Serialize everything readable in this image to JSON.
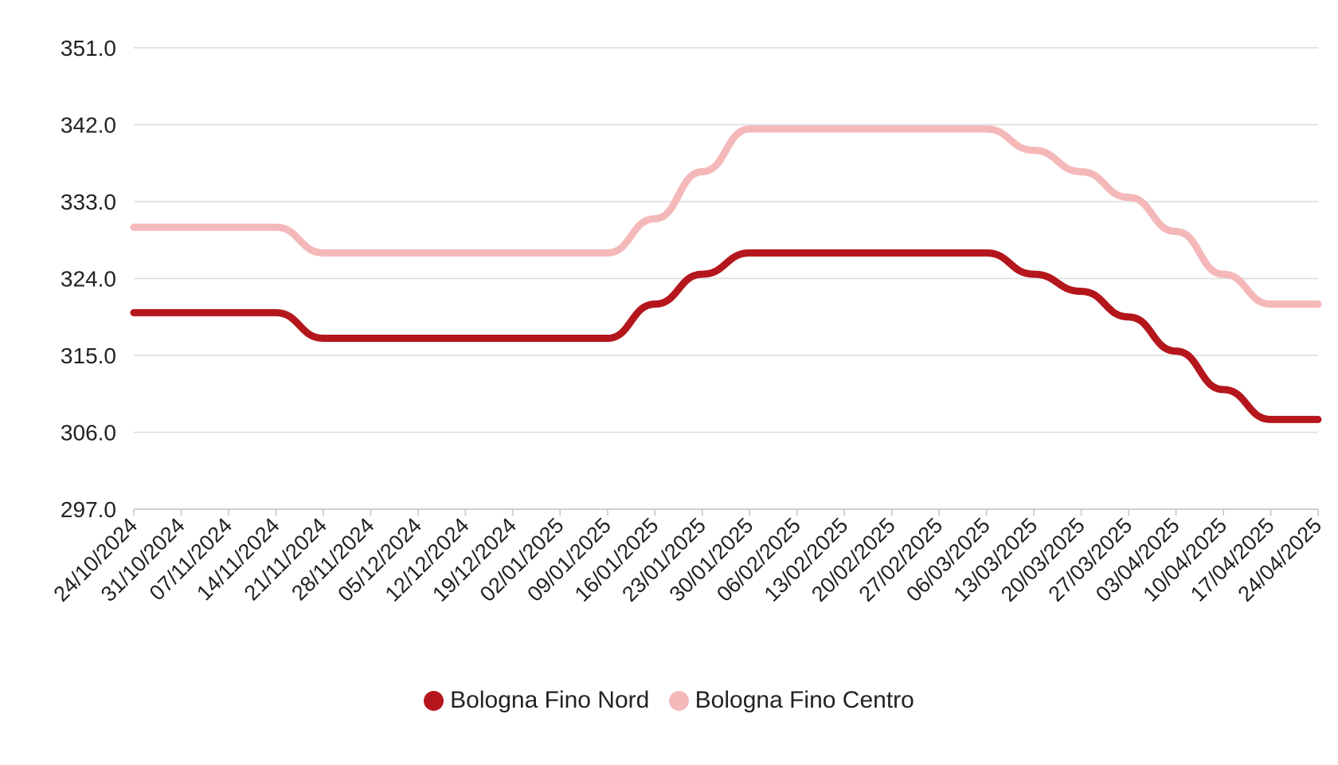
{
  "chart_data": {
    "type": "line",
    "title": "",
    "xlabel": "",
    "ylabel": "",
    "ylim": [
      297.0,
      351.0
    ],
    "yticks": [
      "351.0",
      "342.0",
      "333.0",
      "324.0",
      "315.0",
      "306.0",
      "297.0"
    ],
    "grid": true,
    "legend_position": "bottom",
    "categories": [
      "24/10/2024",
      "31/10/2024",
      "07/11/2024",
      "14/11/2024",
      "21/11/2024",
      "28/11/2024",
      "05/12/2024",
      "12/12/2024",
      "19/12/2024",
      "02/01/2025",
      "09/01/2025",
      "16/01/2025",
      "23/01/2025",
      "30/01/2025",
      "06/02/2025",
      "13/02/2025",
      "20/02/2025",
      "27/02/2025",
      "06/03/2025",
      "13/03/2025",
      "20/03/2025",
      "27/03/2025",
      "03/04/2025",
      "10/04/2025",
      "17/04/2025",
      "24/04/2025"
    ],
    "series": [
      {
        "name": "Bologna Fino Nord",
        "color": "#b5161b",
        "values": [
          320.0,
          320.0,
          320.0,
          320.0,
          317.0,
          317.0,
          317.0,
          317.0,
          317.0,
          317.0,
          317.0,
          321.0,
          324.5,
          327.0,
          327.0,
          327.0,
          327.0,
          327.0,
          327.0,
          324.5,
          322.5,
          319.5,
          315.5,
          311.0,
          307.5,
          307.5
        ]
      },
      {
        "name": "Bologna Fino Centro",
        "color": "#f5b8b9",
        "values": [
          330.0,
          330.0,
          330.0,
          330.0,
          327.0,
          327.0,
          327.0,
          327.0,
          327.0,
          327.0,
          327.0,
          331.0,
          336.5,
          341.5,
          341.5,
          341.5,
          341.5,
          341.5,
          341.5,
          339.0,
          336.5,
          333.5,
          329.5,
          324.5,
          321.0,
          321.0
        ]
      }
    ]
  }
}
